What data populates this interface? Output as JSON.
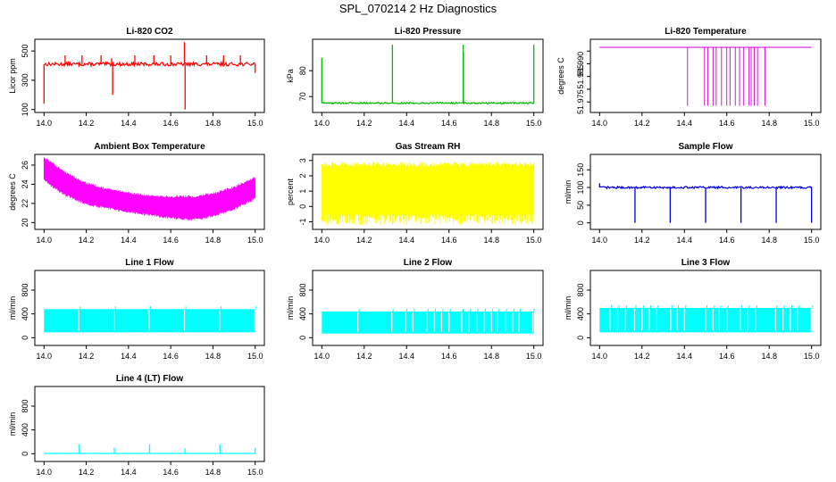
{
  "page_title": "SPL_070214  2 Hz Diagnostics",
  "chart_data": [
    {
      "id": "co2",
      "type": "line",
      "title": "Li-820 CO2",
      "ylabel": "Licor ppm",
      "xlim": [
        14.0,
        15.0
      ],
      "ylim": [
        100,
        560
      ],
      "yticks": [
        100,
        300,
        500
      ],
      "ytick_labels": [
        "100",
        "300",
        "500"
      ],
      "xticks": [
        14.0,
        14.2,
        14.4,
        14.6,
        14.8,
        15.0
      ],
      "xtick_labels": [
        "14.0",
        "14.2",
        "14.4",
        "14.6",
        "14.8",
        "15.0"
      ],
      "color": "#ff0000",
      "baseline": 410,
      "noise": 12,
      "spikes": [
        {
          "x": 14.0,
          "value": 140
        },
        {
          "x": 14.1,
          "value": 470
        },
        {
          "x": 14.18,
          "value": 470
        },
        {
          "x": 14.27,
          "value": 470
        },
        {
          "x": 14.32,
          "value": 450
        },
        {
          "x": 14.325,
          "value": 200
        },
        {
          "x": 14.43,
          "value": 470
        },
        {
          "x": 14.52,
          "value": 470
        },
        {
          "x": 14.6,
          "value": 470
        },
        {
          "x": 14.665,
          "value": 560
        },
        {
          "x": 14.668,
          "value": 100
        },
        {
          "x": 14.77,
          "value": 470
        },
        {
          "x": 14.85,
          "value": 470
        },
        {
          "x": 14.93,
          "value": 470
        },
        {
          "x": 15.0,
          "value": 350
        }
      ]
    },
    {
      "id": "pressure",
      "type": "line",
      "title": "Li-820 Pressure",
      "ylabel": "kPa",
      "xlim": [
        14.0,
        15.0
      ],
      "ylim": [
        65,
        91
      ],
      "yticks": [
        70,
        80
      ],
      "ytick_labels": [
        "70",
        "80"
      ],
      "xticks": [
        14.0,
        14.2,
        14.4,
        14.6,
        14.8,
        15.0
      ],
      "xtick_labels": [
        "14.0",
        "14.2",
        "14.4",
        "14.6",
        "14.8",
        "15.0"
      ],
      "color": "#00bb00",
      "baseline": 67.5,
      "noise": 0.3,
      "spikes": [
        {
          "x": 14.0,
          "value": 85
        },
        {
          "x": 14.333,
          "value": 90
        },
        {
          "x": 14.667,
          "value": 90
        },
        {
          "x": 14.668,
          "value": 87
        },
        {
          "x": 15.0,
          "value": 90
        }
      ]
    },
    {
      "id": "temperature",
      "type": "line",
      "title": "Li-820 Temperature",
      "ylabel": "degrees C",
      "xlim": [
        14.0,
        15.0
      ],
      "ylim": [
        51.972,
        51.9985
      ],
      "yticks": [
        51.975,
        51.98,
        51.985,
        51.99,
        51.995
      ],
      "ytick_labels": [
        "51.975",
        "",
        "51.985",
        "51.990",
        ""
      ],
      "xticks": [
        14.0,
        14.2,
        14.4,
        14.6,
        14.8,
        15.0
      ],
      "xtick_labels": [
        "14.0",
        "14.2",
        "14.4",
        "14.6",
        "14.8",
        "15.0"
      ],
      "color": "#cc00cc",
      "baseline": 51.9965,
      "noise": 0.0001,
      "dips": [
        14.415,
        14.495,
        14.51,
        14.535,
        14.55,
        14.575,
        14.6,
        14.615,
        14.64,
        14.66,
        14.68,
        14.705,
        14.715,
        14.73,
        14.745,
        14.78
      ],
      "dip_value": 51.9735
    },
    {
      "id": "ambient",
      "type": "band",
      "title": "Ambient Box Temperature",
      "ylabel": "degrees C",
      "xlim": [
        14.0,
        15.0
      ],
      "ylim": [
        19.6,
        26.8
      ],
      "yticks": [
        20,
        22,
        24,
        26
      ],
      "ytick_labels": [
        "20",
        "22",
        "24",
        "26"
      ],
      "xticks": [
        14.0,
        14.2,
        14.4,
        14.6,
        14.8,
        15.0
      ],
      "xtick_labels": [
        "14.0",
        "14.2",
        "14.4",
        "14.6",
        "14.8",
        "15.0"
      ],
      "color": "#ff00ff",
      "upper": [
        [
          14.0,
          26.7
        ],
        [
          14.05,
          25.9
        ],
        [
          14.1,
          25.1
        ],
        [
          14.2,
          24.0
        ],
        [
          14.3,
          23.4
        ],
        [
          14.4,
          23.0
        ],
        [
          14.5,
          22.7
        ],
        [
          14.6,
          22.6
        ],
        [
          14.7,
          22.6
        ],
        [
          14.8,
          22.9
        ],
        [
          14.9,
          23.6
        ],
        [
          15.0,
          24.6
        ]
      ],
      "lower": [
        [
          14.0,
          24.6
        ],
        [
          14.05,
          23.7
        ],
        [
          14.1,
          23.0
        ],
        [
          14.2,
          22.0
        ],
        [
          14.3,
          21.6
        ],
        [
          14.4,
          21.2
        ],
        [
          14.5,
          20.9
        ],
        [
          14.6,
          20.6
        ],
        [
          14.7,
          20.4
        ],
        [
          14.8,
          20.8
        ],
        [
          14.9,
          21.5
        ],
        [
          15.0,
          22.6
        ]
      ]
    },
    {
      "id": "rh",
      "type": "band",
      "title": "Gas Stream RH",
      "ylabel": "percent",
      "xlim": [
        14.0,
        15.0
      ],
      "ylim": [
        -1.3,
        3.2
      ],
      "yticks": [
        -1,
        0,
        1,
        2,
        3
      ],
      "ytick_labels": [
        "-1",
        "0",
        "1",
        "2",
        "3"
      ],
      "xticks": [
        14.0,
        14.2,
        14.4,
        14.6,
        14.8,
        15.0
      ],
      "xtick_labels": [
        "14.0",
        "14.2",
        "14.4",
        "14.6",
        "14.8",
        "15.0"
      ],
      "color": "#ffff00",
      "upper": [
        [
          14.0,
          2.6
        ],
        [
          15.0,
          2.6
        ]
      ],
      "lower": [
        [
          14.0,
          -0.5
        ],
        [
          15.0,
          -0.5
        ]
      ],
      "spike_hi": 2.9,
      "spike_lo": -1.2
    },
    {
      "id": "sample",
      "type": "line",
      "title": "Sample Flow",
      "ylabel": "ml/min",
      "xlim": [
        14.0,
        15.0
      ],
      "ylim": [
        -10,
        185
      ],
      "yticks": [
        0,
        50,
        100,
        150
      ],
      "ytick_labels": [
        "0",
        "50",
        "100",
        "150"
      ],
      "xticks": [
        14.0,
        14.2,
        14.4,
        14.6,
        14.8,
        15.0
      ],
      "xtick_labels": [
        "14.0",
        "14.2",
        "14.4",
        "14.6",
        "14.8",
        "15.0"
      ],
      "color": "#0000dd",
      "baseline": 100,
      "noise": 3,
      "spikes": [
        {
          "x": 14.0,
          "value": 112
        },
        {
          "x": 14.167,
          "value": 0
        },
        {
          "x": 14.333,
          "value": 0
        },
        {
          "x": 14.5,
          "value": 0
        },
        {
          "x": 14.667,
          "value": 0
        },
        {
          "x": 14.833,
          "value": 0
        },
        {
          "x": 15.0,
          "value": 0
        }
      ]
    },
    {
      "id": "line1",
      "type": "pulse",
      "title": "Line 1 Flow",
      "ylabel": "ml/min",
      "xlim": [
        14.0,
        15.0
      ],
      "ylim": [
        -80,
        1080
      ],
      "yticks": [
        0,
        400,
        800
      ],
      "ytick_labels": [
        "0",
        "400",
        "800"
      ],
      "xticks": [
        14.0,
        14.2,
        14.4,
        14.6,
        14.8,
        15.0
      ],
      "xtick_labels": [
        "14.0",
        "14.2",
        "14.4",
        "14.6",
        "14.8",
        "15.0"
      ],
      "color": "#00ffff",
      "high": 480,
      "low": 90,
      "gaps": [
        14.165,
        14.332,
        14.498,
        14.665,
        14.832,
        14.998
      ]
    },
    {
      "id": "line2",
      "type": "pulse",
      "title": "Line 2 Flow",
      "ylabel": "ml/min",
      "xlim": [
        14.0,
        15.0
      ],
      "ylim": [
        -80,
        1080
      ],
      "yticks": [
        0,
        400,
        800
      ],
      "ytick_labels": [
        "0",
        "400",
        "800"
      ],
      "xticks": [
        14.0,
        14.2,
        14.4,
        14.6,
        14.8,
        15.0
      ],
      "xtick_labels": [
        "14.0",
        "14.2",
        "14.4",
        "14.6",
        "14.8",
        "15.0"
      ],
      "color": "#00ffff",
      "high": 440,
      "low": 70,
      "gaps": [
        14.17,
        14.33,
        14.395,
        14.43,
        14.495,
        14.53,
        14.565,
        14.6,
        14.66,
        14.695,
        14.73,
        14.765,
        14.8,
        14.83,
        14.865,
        14.9,
        14.93,
        14.995
      ]
    },
    {
      "id": "line3",
      "type": "pulse",
      "title": "Line 3 Flow",
      "ylabel": "ml/min",
      "xlim": [
        14.0,
        15.0
      ],
      "ylim": [
        -80,
        1080
      ],
      "yticks": [
        0,
        400,
        800
      ],
      "ytick_labels": [
        "0",
        "400",
        "800"
      ],
      "xticks": [
        14.0,
        14.2,
        14.4,
        14.6,
        14.8,
        15.0
      ],
      "xtick_labels": [
        "14.0",
        "14.2",
        "14.4",
        "14.6",
        "14.8",
        "15.0"
      ],
      "color": "#00ffff",
      "high": 500,
      "low": 90,
      "gaps": [
        14.05,
        14.085,
        14.12,
        14.165,
        14.2,
        14.235,
        14.27,
        14.335,
        14.365,
        14.4,
        14.5,
        14.535,
        14.565,
        14.6,
        14.665,
        14.7,
        14.735,
        14.83,
        14.865,
        14.9,
        14.935,
        14.998
      ]
    },
    {
      "id": "line4",
      "type": "line",
      "title": "Line 4 (LT) Flow",
      "ylabel": "ml/min",
      "xlim": [
        14.0,
        15.0
      ],
      "ylim": [
        -80,
        1080
      ],
      "yticks": [
        0,
        400,
        800
      ],
      "ytick_labels": [
        "0",
        "400",
        "800"
      ],
      "xticks": [
        14.0,
        14.2,
        14.4,
        14.6,
        14.8,
        15.0
      ],
      "xtick_labels": [
        "14.0",
        "14.2",
        "14.4",
        "14.6",
        "14.8",
        "15.0"
      ],
      "color": "#00ffff",
      "baseline": 5,
      "noise": 2,
      "spikes": [
        {
          "x": 14.167,
          "value": 160
        },
        {
          "x": 14.333,
          "value": 100
        },
        {
          "x": 14.5,
          "value": 160
        },
        {
          "x": 14.667,
          "value": 90
        },
        {
          "x": 14.833,
          "value": 160
        },
        {
          "x": 15.0,
          "value": 100
        }
      ]
    }
  ]
}
